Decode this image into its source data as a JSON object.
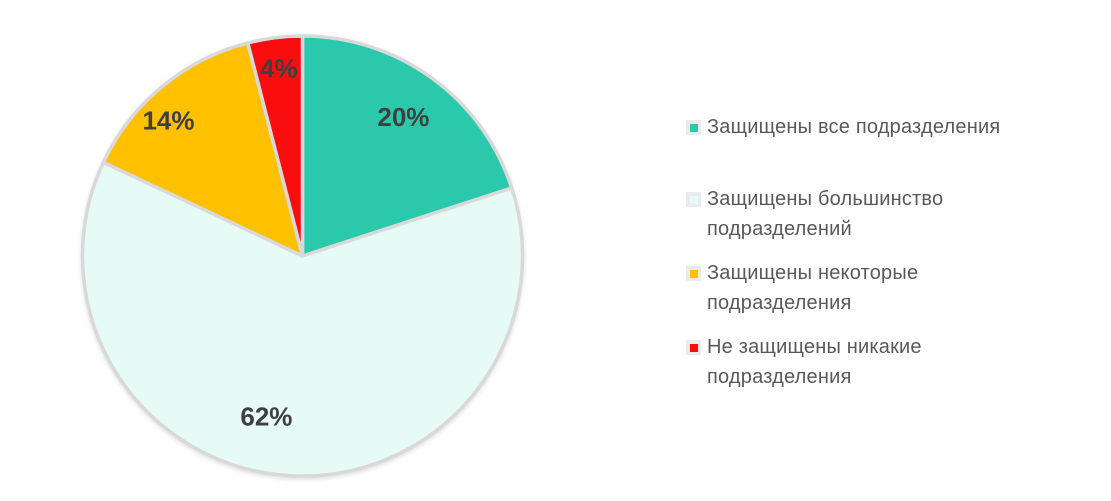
{
  "chart_data": {
    "type": "pie",
    "labels": [
      "Защищены все подразделения",
      "Защищены большинство подразделений",
      "Защищены некоторые подразделения",
      "Не защищены никакие подразделения"
    ],
    "values": [
      20,
      62,
      14,
      4
    ],
    "unit": "%",
    "slice_label_texts": [
      "20%",
      "62%",
      "14%",
      "4%"
    ],
    "colors": [
      "#2BC9AB",
      "#E6FAF6",
      "#FFC000",
      "#FA0D0D"
    ],
    "border_color": "#D9D9D9",
    "slice_label_color": "#3F3F3F",
    "start_angle_deg": 0,
    "direction": "clockwise",
    "grid": false,
    "legend_position": "right",
    "legend": {
      "marker_bg": "#EBEBEB",
      "text_color": "#595959",
      "items": [
        {
          "lines": [
            "Защищены все подразделения"
          ]
        },
        {
          "lines": [
            "Защищены большинство",
            "подразделений"
          ]
        },
        {
          "lines": [
            "Защищены некоторые",
            "подразделения"
          ]
        },
        {
          "lines": [
            "Не защищены никакие",
            "подразделения"
          ]
        }
      ]
    }
  }
}
